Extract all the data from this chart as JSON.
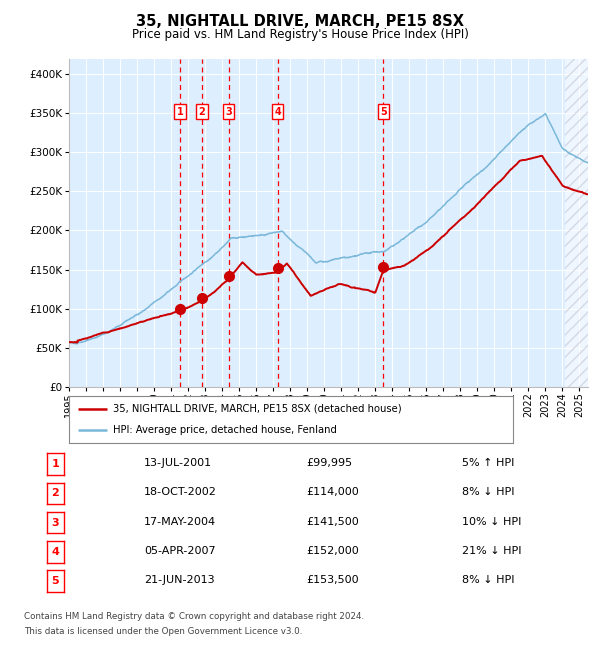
{
  "title": "35, NIGHTALL DRIVE, MARCH, PE15 8SX",
  "subtitle": "Price paid vs. HM Land Registry's House Price Index (HPI)",
  "legend_line1": "35, NIGHTALL DRIVE, MARCH, PE15 8SX (detached house)",
  "legend_line2": "HPI: Average price, detached house, Fenland",
  "footer1": "Contains HM Land Registry data © Crown copyright and database right 2024.",
  "footer2": "This data is licensed under the Open Government Licence v3.0.",
  "hpi_color": "#7ab8d9",
  "price_color": "#cc0000",
  "bg_color": "#ddeeff",
  "grid_color": "#ffffff",
  "sale_markers": [
    {
      "label": "1",
      "price": 99995,
      "x": 2001.533
    },
    {
      "label": "2",
      "price": 114000,
      "x": 2002.8
    },
    {
      "label": "3",
      "price": 141500,
      "x": 2004.375
    },
    {
      "label": "4",
      "price": 152000,
      "x": 2007.258
    },
    {
      "label": "5",
      "price": 153500,
      "x": 2013.472
    }
  ],
  "table_rows": [
    [
      "1",
      "13-JUL-2001",
      "£99,995",
      "5% ↑ HPI"
    ],
    [
      "2",
      "18-OCT-2002",
      "£114,000",
      "8% ↓ HPI"
    ],
    [
      "3",
      "17-MAY-2004",
      "£141,500",
      "10% ↓ HPI"
    ],
    [
      "4",
      "05-APR-2007",
      "£152,000",
      "21% ↓ HPI"
    ],
    [
      "5",
      "21-JUN-2013",
      "£153,500",
      "8% ↓ HPI"
    ]
  ],
  "xmin": 1995.0,
  "xmax": 2025.5,
  "ymin": 0,
  "ymax": 420000,
  "yticks": [
    0,
    50000,
    100000,
    150000,
    200000,
    250000,
    300000,
    350000,
    400000
  ],
  "ytick_labels": [
    "£0",
    "£50K",
    "£100K",
    "£150K",
    "£200K",
    "£250K",
    "£300K",
    "£350K",
    "£400K"
  ],
  "xticks": [
    1995,
    1996,
    1997,
    1998,
    1999,
    2000,
    2001,
    2002,
    2003,
    2004,
    2005,
    2006,
    2007,
    2008,
    2009,
    2010,
    2011,
    2012,
    2013,
    2014,
    2015,
    2016,
    2017,
    2018,
    2019,
    2020,
    2021,
    2022,
    2023,
    2024,
    2025
  ]
}
